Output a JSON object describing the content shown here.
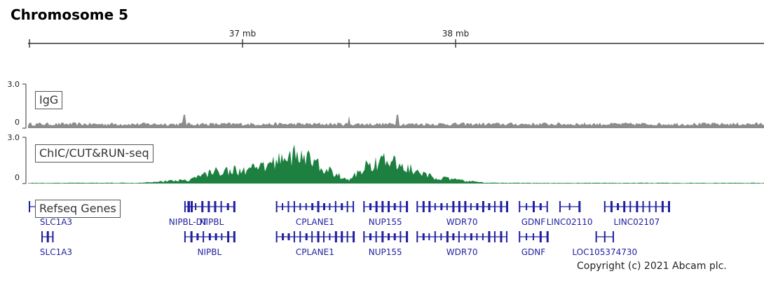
{
  "title": "Chromosome 5",
  "copyright": "Copyright (c) 2021 Abcam plc.",
  "colors": {
    "igg": "#8c8c8c",
    "chic": "#1d8040",
    "gene": "#1f1fa0",
    "axis": "#333333"
  },
  "chart_data": {
    "type": "area",
    "x_axis": {
      "unit": "mb",
      "range": [
        36.0,
        38.45
      ],
      "ticks": [
        37,
        38
      ],
      "tick_labels": [
        "37 mb",
        "38 mb"
      ]
    },
    "tracks": [
      {
        "name": "IgG",
        "ymin_label": "0",
        "ymax_label": "3.0",
        "ylim": [
          0,
          3.0
        ],
        "x": [
          36.0,
          36.2,
          36.4,
          36.6,
          36.75,
          36.9,
          37.1,
          37.3,
          37.5,
          37.7,
          37.9,
          38.1,
          38.3,
          38.45
        ],
        "values": [
          0.35,
          0.35,
          0.35,
          0.35,
          0.35,
          0.35,
          0.35,
          0.35,
          0.35,
          0.35,
          0.35,
          0.35,
          0.35,
          0.35
        ],
        "peaks": [
          {
            "x": 36.73,
            "value": 1.05
          },
          {
            "x": 37.5,
            "value": 0.95
          },
          {
            "x": 37.73,
            "value": 1.05
          }
        ]
      },
      {
        "name": "ChIC/CUT&RUN-seq",
        "ymin_label": "0",
        "ymax_label": "3.0",
        "ylim": [
          0,
          3.0
        ],
        "x": [
          36.0,
          36.5,
          36.75,
          36.85,
          36.93,
          37.0,
          37.07,
          37.12,
          37.2,
          37.3,
          37.35,
          37.43,
          37.5,
          37.55,
          37.6,
          37.68,
          37.78,
          37.85,
          37.9,
          38.05,
          38.15,
          38.3,
          38.45
        ],
        "values": [
          0.05,
          0.06,
          0.3,
          0.9,
          1.1,
          1.0,
          1.2,
          1.4,
          2.3,
          2.1,
          1.5,
          0.8,
          0.25,
          1.0,
          1.6,
          1.8,
          1.2,
          0.7,
          0.5,
          0.2,
          0.06,
          0.05,
          0.05
        ]
      }
    ],
    "gene_track_label": "Refseq Genes",
    "genes": [
      {
        "name": "SLC1A3",
        "start": 35.84,
        "end": 36.0,
        "row": 1
      },
      {
        "name": "NIPBL-DT",
        "start": 36.73,
        "end": 36.76,
        "row": 1
      },
      {
        "name": "NIPBL",
        "start": 36.75,
        "end": 36.96,
        "row": 1
      },
      {
        "name": "CPLANE1",
        "start": 37.16,
        "end": 37.52,
        "row": 1
      },
      {
        "name": "NUP155",
        "start": 37.57,
        "end": 37.77,
        "row": 1
      },
      {
        "name": "WDR70",
        "start": 37.82,
        "end": 38.24,
        "row": 1
      },
      {
        "name": "GDNF",
        "start": 38.3,
        "end": 38.43,
        "row": 1
      },
      {
        "name": "LINC02110",
        "start": 38.49,
        "end": 38.58,
        "row": 1
      },
      {
        "name": "LINC02107",
        "start": 38.7,
        "end": 39.0,
        "row": 1
      },
      {
        "name": "SLC1A3",
        "start": 35.9,
        "end": 36.11,
        "row": 2
      },
      {
        "name": "NIPBL",
        "start": 36.73,
        "end": 36.96,
        "row": 2
      },
      {
        "name": "CPLANE1",
        "start": 37.16,
        "end": 37.52,
        "row": 2
      },
      {
        "name": "NUP155",
        "start": 37.57,
        "end": 37.77,
        "row": 2
      },
      {
        "name": "WDR70",
        "start": 37.82,
        "end": 38.24,
        "row": 2
      },
      {
        "name": "GDNF",
        "start": 38.3,
        "end": 38.43,
        "row": 2
      },
      {
        "name": "LOC105374730",
        "start": 38.66,
        "end": 38.74,
        "row": 2
      }
    ]
  }
}
